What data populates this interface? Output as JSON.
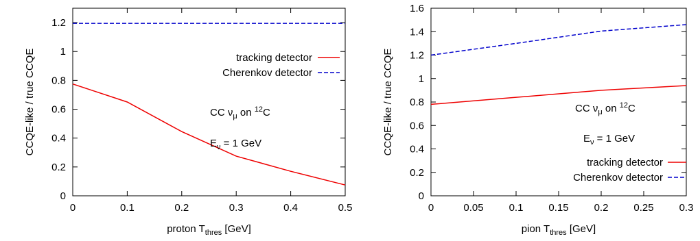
{
  "chart_data": [
    {
      "type": "line",
      "xlabel": {
        "main": "proton T",
        "sub": "thres",
        "tail": " [GeV]"
      },
      "ylabel": "CCQE-like / true CCQE",
      "xlim": [
        0,
        0.5
      ],
      "ylim": [
        0,
        1.3
      ],
      "xticks": [
        "0",
        "0.1",
        "0.2",
        "0.3",
        "0.4",
        "0.5"
      ],
      "yticks": [
        "0",
        "0.2",
        "0.4",
        "0.6",
        "0.8",
        "1",
        "1.2"
      ],
      "legend_position": "top-right",
      "annotations": [
        {
          "text": "CC ν",
          "sub": "μ",
          "tail": " on ",
          "sup": "12",
          "end": "C"
        },
        {
          "text": "E",
          "sub": "ν",
          "tail": " = 1 GeV"
        }
      ],
      "series": [
        {
          "name": "tracking detector",
          "color": "#ee0000",
          "dash": "solid",
          "x": [
            0,
            0.1,
            0.2,
            0.3,
            0.4,
            0.5
          ],
          "y": [
            0.775,
            0.65,
            0.445,
            0.275,
            0.17,
            0.075
          ]
        },
        {
          "name": "Cherenkov detector",
          "color": "#0000cc",
          "dash": "dashed",
          "x": [
            0,
            0.5
          ],
          "y": [
            1.195,
            1.195
          ]
        }
      ]
    },
    {
      "type": "line",
      "xlabel": {
        "main": "pion T",
        "sub": "thres",
        "tail": " [GeV]"
      },
      "ylabel": "CCQE-like / true CCQE",
      "xlim": [
        0,
        0.3
      ],
      "ylim": [
        0,
        1.6
      ],
      "xticks": [
        "0",
        "0.05",
        "0.1",
        "0.15",
        "0.2",
        "0.25",
        "0.3"
      ],
      "yticks": [
        "0",
        "0.2",
        "0.4",
        "0.6",
        "0.8",
        "1",
        "1.2",
        "1.4",
        "1.6"
      ],
      "legend_position": "bottom-right",
      "annotations": [
        {
          "text": "CC ν",
          "sub": "μ",
          "tail": " on ",
          "sup": "12",
          "end": "C"
        },
        {
          "text": "E",
          "sub": "ν",
          "tail": " = 1 GeV"
        }
      ],
      "series": [
        {
          "name": "tracking detector",
          "color": "#ee0000",
          "dash": "solid",
          "x": [
            0,
            0.1,
            0.2,
            0.3
          ],
          "y": [
            0.78,
            0.84,
            0.9,
            0.94
          ]
        },
        {
          "name": "Cherenkov detector",
          "color": "#0000cc",
          "dash": "dashed",
          "x": [
            0,
            0.1,
            0.2,
            0.3
          ],
          "y": [
            1.2,
            1.3,
            1.405,
            1.46
          ]
        }
      ]
    }
  ]
}
